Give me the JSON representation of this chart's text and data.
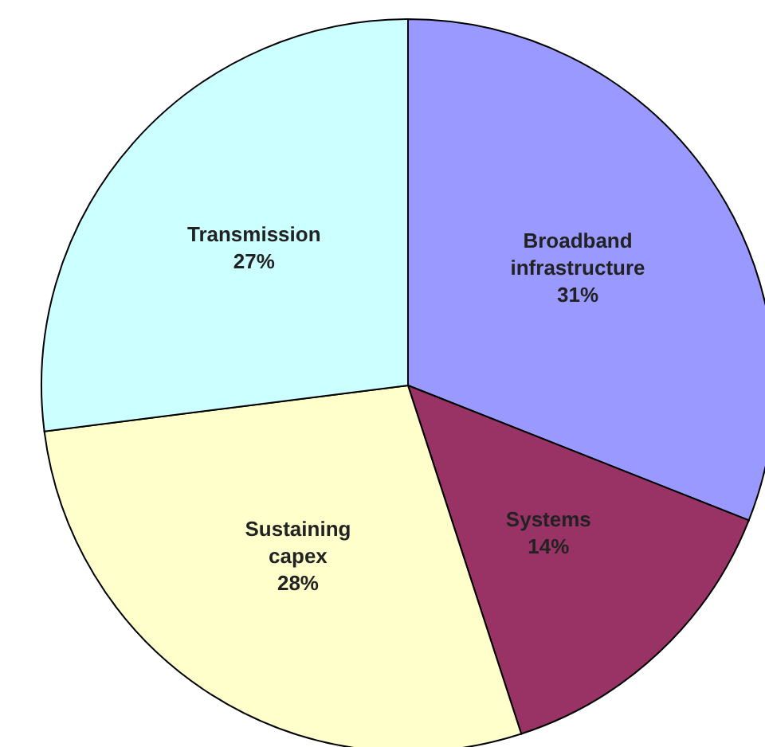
{
  "chart_data": {
    "type": "pie",
    "categories": [
      "Broadband infrastructure",
      "Systems",
      "Sustaining capex",
      "Transmission"
    ],
    "values": [
      31,
      14,
      28,
      27
    ],
    "colors": [
      "#9999ff",
      "#993366",
      "#ffffcc",
      "#ccffff"
    ],
    "value_labels": [
      "31%",
      "14%",
      "28%",
      "27%"
    ]
  }
}
